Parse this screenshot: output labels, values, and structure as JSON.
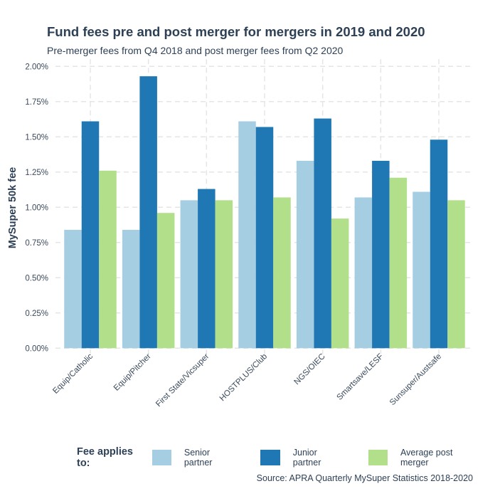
{
  "chart_data": {
    "type": "bar",
    "title": "Fund fees pre and post merger for mergers in 2019 and 2020",
    "subtitle": "Pre-merger fees from Q4 2018 and post merger fees from Q2 2020",
    "xlabel": "",
    "ylabel": "MySuper 50k fee",
    "ylim": [
      0,
      2.0
    ],
    "yticks": [
      0,
      0.25,
      0.5,
      0.75,
      1.0,
      1.25,
      1.5,
      1.75,
      2.0
    ],
    "ytick_labels": [
      "0.00%",
      "0.25%",
      "0.50%",
      "0.75%",
      "1.00%",
      "1.25%",
      "1.50%",
      "1.75%",
      "2.00%"
    ],
    "categories": [
      "Equip/Catholic",
      "Equip/Pitcher",
      "First State/Vicsuper",
      "HOSTPLUS/Club",
      "NGS/OIEC",
      "Smartsave/LESF",
      "Sunsuper/Austsafe"
    ],
    "series": [
      {
        "name": "Senior partner",
        "color": "#a6cee3",
        "values": [
          0.84,
          0.84,
          1.05,
          1.61,
          1.33,
          1.07,
          1.11
        ]
      },
      {
        "name": "Junior partner",
        "color": "#1f78b4",
        "values": [
          1.61,
          1.93,
          1.13,
          1.57,
          1.63,
          1.33,
          1.48
        ]
      },
      {
        "name": "Average post merger",
        "color": "#b2df8a",
        "values": [
          1.26,
          0.96,
          1.05,
          1.07,
          0.92,
          1.21,
          1.05
        ]
      }
    ],
    "legend_title": "Fee applies to:",
    "legend_position": "bottom",
    "grid": true,
    "source": "Source: APRA Quarterly MySuper Statistics 2018-2020"
  }
}
